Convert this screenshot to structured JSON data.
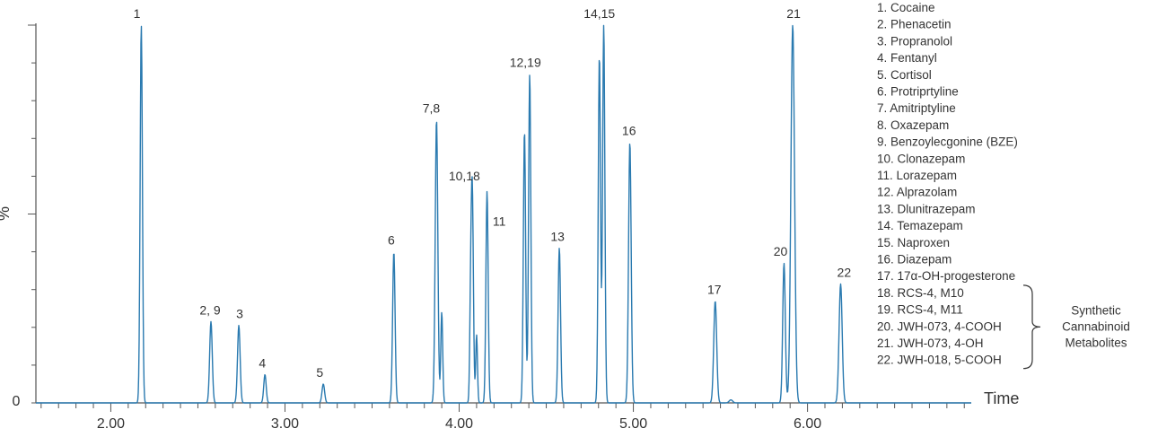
{
  "chart_data": {
    "type": "line",
    "xlabel": "Time",
    "ylabel": "%",
    "xlim": [
      1.57,
      6.94
    ],
    "ylim": [
      0,
      100
    ],
    "x_ticks": [
      2.0,
      3.0,
      4.0,
      5.0,
      6.0
    ],
    "x_tick_labels": [
      "2.00",
      "3.00",
      "4.00",
      "5.00",
      "6.00"
    ],
    "y_tick_labels": [
      {
        "value": 0,
        "label": "0"
      }
    ],
    "peaks": [
      {
        "x": 2.175,
        "y": 100,
        "w": 0.0065
      },
      {
        "x": 2.575,
        "y": 21.5,
        "w": 0.0075
      },
      {
        "x": 2.735,
        "y": 20.5,
        "w": 0.0075
      },
      {
        "x": 2.885,
        "y": 7.5,
        "w": 0.007
      },
      {
        "x": 3.22,
        "y": 5,
        "w": 0.0075
      },
      {
        "x": 3.625,
        "y": 40,
        "w": 0.007
      },
      {
        "x": 3.87,
        "y": 75,
        "w": 0.0075
      },
      {
        "x": 3.9,
        "y": 24,
        "w": 0.0055
      },
      {
        "x": 4.075,
        "y": 57,
        "w": 0.0065
      },
      {
        "x": 4.065,
        "y": 19,
        "w": 0.005
      },
      {
        "x": 4.1,
        "y": 18,
        "w": 0.005
      },
      {
        "x": 4.16,
        "y": 56,
        "w": 0.0065
      },
      {
        "x": 4.375,
        "y": 72,
        "w": 0.0065
      },
      {
        "x": 4.405,
        "y": 87,
        "w": 0.0065
      },
      {
        "x": 4.575,
        "y": 41,
        "w": 0.007
      },
      {
        "x": 4.805,
        "y": 92,
        "w": 0.0065
      },
      {
        "x": 4.83,
        "y": 100,
        "w": 0.0065
      },
      {
        "x": 4.98,
        "y": 69,
        "w": 0.0075
      },
      {
        "x": 5.47,
        "y": 27,
        "w": 0.0085
      },
      {
        "x": 5.56,
        "y": 0.8,
        "w": 0.01
      },
      {
        "x": 5.865,
        "y": 37,
        "w": 0.0075
      },
      {
        "x": 5.915,
        "y": 100,
        "w": 0.0105
      },
      {
        "x": 6.19,
        "y": 31.5,
        "w": 0.009
      }
    ],
    "peak_labels": [
      {
        "text": "1",
        "x": 2.15,
        "y": 100
      },
      {
        "text": "2, 9",
        "x": 2.57,
        "y": 21.5
      },
      {
        "text": "3",
        "x": 2.74,
        "y": 20.5
      },
      {
        "text": "4",
        "x": 2.87,
        "y": 7.5
      },
      {
        "text": "5",
        "x": 3.2,
        "y": 5
      },
      {
        "text": "6",
        "x": 3.61,
        "y": 40
      },
      {
        "text": "7,8",
        "x": 3.84,
        "y": 75
      },
      {
        "text": "10,18",
        "x": 4.03,
        "y": 57
      },
      {
        "text": "11",
        "x": 4.23,
        "y": 45
      },
      {
        "text": "12,19",
        "x": 4.38,
        "y": 87
      },
      {
        "text": "13",
        "x": 4.565,
        "y": 41
      },
      {
        "text": "14,15",
        "x": 4.805,
        "y": 100
      },
      {
        "text": "16",
        "x": 4.975,
        "y": 69
      },
      {
        "text": "17",
        "x": 5.465,
        "y": 27
      },
      {
        "text": "20",
        "x": 5.845,
        "y": 37
      },
      {
        "text": "21",
        "x": 5.92,
        "y": 100
      },
      {
        "text": "22",
        "x": 6.21,
        "y": 31.5
      }
    ],
    "legend": [
      "1.  Cocaine",
      "2.  Phenacetin",
      "3.  Propranolol",
      "4.  Fentanyl",
      "5.  Cortisol",
      "6.  Protriprtyline",
      "7.  Amitriptyline",
      "8.  Oxazepam",
      "9.  Benzoylecgonine (BZE)",
      "10.  Clonazepam",
      "11.  Lorazepam",
      "12.  Alprazolam",
      "13.  Dlunitrazepam",
      "14.  Temazepam",
      "15.  Naproxen",
      "16.  Diazepam",
      "17.  17α-OH-progesterone",
      "18.  RCS-4, M10",
      "19.  RCS-4, M11",
      "20.  JWH-073, 4-COOH",
      "21.  JWH-073, 4-OH",
      "22.  JWH-018, 5-COOH"
    ],
    "bracket_label": [
      "Synthetic",
      "Cannabinoid",
      "Metabolites"
    ],
    "colors": {
      "trace": "#2a7ab0",
      "axis": "#555555",
      "text": "#333333"
    }
  }
}
